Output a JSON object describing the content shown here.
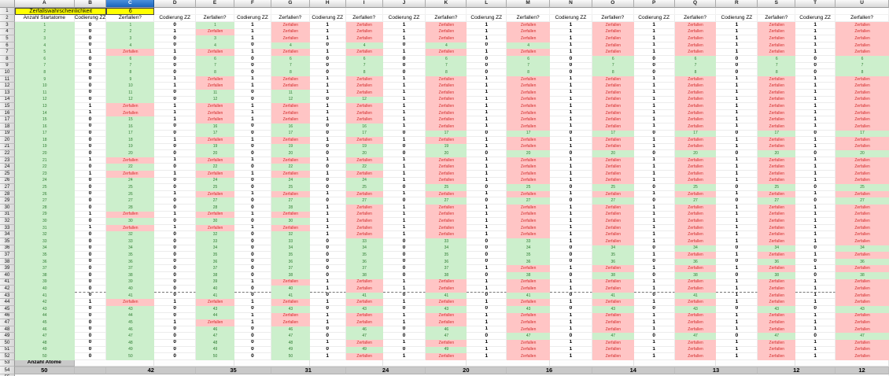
{
  "sheet": {
    "column_letters": [
      "A",
      "B",
      "C",
      "D",
      "E",
      "F",
      "G",
      "H",
      "I",
      "J",
      "K",
      "L",
      "M",
      "N",
      "O",
      "P",
      "Q",
      "R",
      "S",
      "T",
      "U"
    ],
    "selected_column": "C",
    "title_row": {
      "title": "Zerfallswahrscheinlichkeit",
      "value": "6"
    },
    "header_row": {
      "first_col": "Anzahl Startatome",
      "code_label": "Codierung ZZ",
      "state_label": "Zerfallen?"
    },
    "zerfallen_label": "Zerfallen",
    "generations": 10,
    "atoms": [
      {
        "n": 1,
        "decay_gen": 3
      },
      {
        "n": 2,
        "decay_gen": 2
      },
      {
        "n": 3,
        "decay_gen": 3
      },
      {
        "n": 4,
        "decay_gen": 7
      },
      {
        "n": 5,
        "decay_gen": 1
      },
      {
        "n": 6,
        "decay_gen": null
      },
      {
        "n": 7,
        "decay_gen": null
      },
      {
        "n": 8,
        "decay_gen": null
      },
      {
        "n": 9,
        "decay_gen": 2
      },
      {
        "n": 10,
        "decay_gen": 2
      },
      {
        "n": 11,
        "decay_gen": 4
      },
      {
        "n": 12,
        "decay_gen": 5
      },
      {
        "n": 13,
        "decay_gen": 1
      },
      {
        "n": 14,
        "decay_gen": 1
      },
      {
        "n": 15,
        "decay_gen": 2
      },
      {
        "n": 16,
        "decay_gen": 5
      },
      {
        "n": 17,
        "decay_gen": null
      },
      {
        "n": 18,
        "decay_gen": 2
      },
      {
        "n": 19,
        "decay_gen": 6
      },
      {
        "n": 20,
        "decay_gen": null
      },
      {
        "n": 21,
        "decay_gen": 1
      },
      {
        "n": 22,
        "decay_gen": 5
      },
      {
        "n": 23,
        "decay_gen": 1
      },
      {
        "n": 24,
        "decay_gen": 5
      },
      {
        "n": 25,
        "decay_gen": null
      },
      {
        "n": 26,
        "decay_gen": 2
      },
      {
        "n": 27,
        "decay_gen": null
      },
      {
        "n": 28,
        "decay_gen": 4
      },
      {
        "n": 29,
        "decay_gen": 1
      },
      {
        "n": 30,
        "decay_gen": 4
      },
      {
        "n": 31,
        "decay_gen": 1
      },
      {
        "n": 32,
        "decay_gen": 4
      },
      {
        "n": 33,
        "decay_gen": 7
      },
      {
        "n": 34,
        "decay_gen": null
      },
      {
        "n": 35,
        "decay_gen": 8
      },
      {
        "n": 36,
        "decay_gen": null
      },
      {
        "n": 37,
        "decay_gen": 6
      },
      {
        "n": 38,
        "decay_gen": null
      },
      {
        "n": 39,
        "decay_gen": 3
      },
      {
        "n": 40,
        "decay_gen": 4
      },
      {
        "n": 41,
        "decay_gen": 9
      },
      {
        "n": 42,
        "decay_gen": 1
      },
      {
        "n": 43,
        "decay_gen": null
      },
      {
        "n": 44,
        "decay_gen": 3
      },
      {
        "n": 45,
        "decay_gen": 2
      },
      {
        "n": 46,
        "decay_gen": 6
      },
      {
        "n": 47,
        "decay_gen": null
      },
      {
        "n": 48,
        "decay_gen": 4
      },
      {
        "n": 49,
        "decay_gen": 6
      },
      {
        "n": 50,
        "decay_gen": 4
      }
    ],
    "summary": {
      "label": "Anzahl Atome",
      "counts": [
        50,
        42,
        35,
        31,
        24,
        20,
        16,
        14,
        13,
        12,
        12
      ]
    },
    "page_break_after_row": 42,
    "first_data_row": 3,
    "last_row_number": 55
  },
  "colors": {
    "alive_fill": "#ccefcc",
    "alive_text": "#2f7d32",
    "decayed_fill": "#ffc5c5",
    "decayed_text": "#d42a2a",
    "highlight_fill": "#ffff00",
    "selected_header": "#1a64ba",
    "summary_fill": "#c9c9c9"
  }
}
